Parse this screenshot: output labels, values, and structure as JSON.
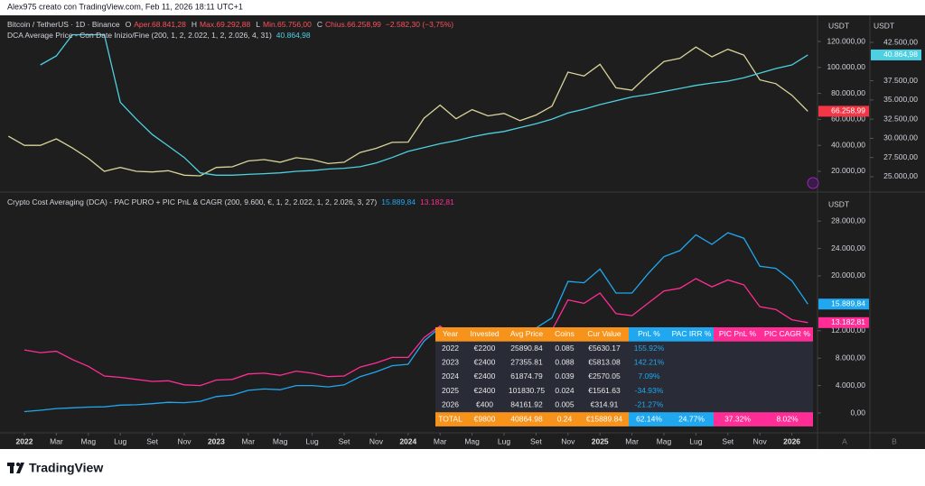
{
  "header": {
    "caption": "Alex975 creato con TradingView.com, Feb 11, 2026 18:11 UTC+1"
  },
  "footer": {
    "brand": "TradingView"
  },
  "ui": {
    "scale_buttons": [
      "A",
      "B"
    ]
  },
  "chart_data": [
    {
      "type": "line",
      "title": "Bitcoin / TetherUS · 1D · Binance",
      "ohlc": [
        {
          "key": "O",
          "value": "Aper.68.841,28"
        },
        {
          "key": "H",
          "value": "Max.69.292,88"
        },
        {
          "key": "L",
          "value": "Min.65.756,00"
        },
        {
          "key": "C",
          "value": "Chius.66.258,99"
        }
      ],
      "change": "−2.582,30 (−3,75%)",
      "y_unit": "USDT",
      "y2_unit": "USDT",
      "x": [
        "2021-12",
        "2022-01",
        "2022-02",
        "2022-03",
        "2022-04",
        "2022-05",
        "2022-06",
        "2022-07",
        "2022-08",
        "2022-09",
        "2022-10",
        "2022-11",
        "2022-12",
        "2023-01",
        "2023-02",
        "2023-03",
        "2023-04",
        "2023-05",
        "2023-06",
        "2023-07",
        "2023-08",
        "2023-09",
        "2023-10",
        "2023-11",
        "2023-12",
        "2024-01",
        "2024-02",
        "2024-03",
        "2024-04",
        "2024-05",
        "2024-06",
        "2024-07",
        "2024-08",
        "2024-09",
        "2024-10",
        "2024-11",
        "2024-12",
        "2025-01",
        "2025-02",
        "2025-03",
        "2025-04",
        "2025-05",
        "2025-06",
        "2025-07",
        "2025-08",
        "2025-09",
        "2025-10",
        "2025-11",
        "2025-12",
        "2026-01",
        "2026-02"
      ],
      "ylim": [
        4722,
        140139
      ],
      "yticks": [
        {
          "value": 20000,
          "label": "20.000,00"
        },
        {
          "value": 40000,
          "label": "40.000,00"
        },
        {
          "value": 60000,
          "label": "60.000,00"
        },
        {
          "value": 80000,
          "label": "80.000,00"
        },
        {
          "value": 100000,
          "label": "100.000,00"
        },
        {
          "value": 120000,
          "label": "120.000,00"
        }
      ],
      "y2lim": [
        23120,
        46025
      ],
      "y2ticks": [
        {
          "value": 25000,
          "label": "25.000,00"
        },
        {
          "value": 27500,
          "label": "27.500,00"
        },
        {
          "value": 30000,
          "label": "30.000,00"
        },
        {
          "value": 32500,
          "label": "32.500,00"
        },
        {
          "value": 35000,
          "label": "35.000,00"
        },
        {
          "value": 37500,
          "label": "37.500,00"
        },
        {
          "value": 42500,
          "label": "42.500,00"
        }
      ],
      "series": [
        {
          "name": "Bitcoin / TetherUS · 1D · Binance",
          "color": "#d8d49a",
          "label_color": "#f23645",
          "last_label": "66.258,99",
          "values": [
            47000,
            40000,
            40000,
            45000,
            38000,
            30000,
            20000,
            23000,
            20000,
            19500,
            20500,
            17000,
            16500,
            23000,
            23500,
            28000,
            29000,
            27000,
            30500,
            29000,
            26000,
            27000,
            34500,
            37700,
            42300,
            42500,
            61000,
            71000,
            60500,
            67500,
            62700,
            64600,
            59000,
            63300,
            70200,
            96400,
            93400,
            102400,
            84300,
            82500,
            94200,
            104600,
            107100,
            115700,
            108200,
            114000,
            109500,
            90400,
            87500,
            78600,
            66258.99
          ]
        },
        {
          "name": "DCA Average Price - Con Date Inizio/Fine (200, 1, 2, 2.022, 1, 2, 2.026, 4, 31)",
          "color": "#4dd0e1",
          "label_color": "#4dd0e1",
          "axis": "y2",
          "last_label": "40.864,98",
          "values": [
            null,
            null,
            39560,
            40740,
            43500,
            43500,
            43500,
            34700,
            32500,
            30500,
            29000,
            27500,
            25500,
            25200,
            25200,
            25300,
            25400,
            25500,
            25700,
            25800,
            26000,
            26100,
            26300,
            26800,
            27500,
            28300,
            28800,
            29300,
            29700,
            30200,
            30600,
            30900,
            31400,
            31900,
            32500,
            33300,
            33800,
            34400,
            34900,
            35400,
            35700,
            36100,
            36500,
            36900,
            37200,
            37450,
            37900,
            38500,
            39100,
            39560,
            40864.98
          ]
        }
      ]
    },
    {
      "type": "line",
      "title": "Crypto Cost Averaging (DCA) - PAC PURO + PIC PnL & CAGR (200, 9.600, €, 1, 2, 2.022, 1, 2, 2.026, 3, 27)",
      "y_unit": "USDT",
      "x": [
        "2021-12",
        "2022-01",
        "2022-02",
        "2022-03",
        "2022-04",
        "2022-05",
        "2022-06",
        "2022-07",
        "2022-08",
        "2022-09",
        "2022-10",
        "2022-11",
        "2022-12",
        "2023-01",
        "2023-02",
        "2023-03",
        "2023-04",
        "2023-05",
        "2023-06",
        "2023-07",
        "2023-08",
        "2023-09",
        "2023-10",
        "2023-11",
        "2023-12",
        "2024-01",
        "2024-02",
        "2024-03",
        "2024-04",
        "2024-05",
        "2024-06",
        "2024-07",
        "2024-08",
        "2024-09",
        "2024-10",
        "2024-11",
        "2024-12",
        "2025-01",
        "2025-02",
        "2025-03",
        "2025-04",
        "2025-05",
        "2025-06",
        "2025-07",
        "2025-08",
        "2025-09",
        "2025-10",
        "2025-11",
        "2025-12",
        "2026-01",
        "2026-02"
      ],
      "xticks": [
        {
          "value": "2022-01",
          "label": "2022"
        },
        {
          "value": "2022-03",
          "label": "Mar"
        },
        {
          "value": "2022-05",
          "label": "Mag"
        },
        {
          "value": "2022-07",
          "label": "Lug"
        },
        {
          "value": "2022-09",
          "label": "Set"
        },
        {
          "value": "2022-11",
          "label": "Nov"
        },
        {
          "value": "2023-01",
          "label": "2023"
        },
        {
          "value": "2023-03",
          "label": "Mar"
        },
        {
          "value": "2023-05",
          "label": "Mag"
        },
        {
          "value": "2023-07",
          "label": "Lug"
        },
        {
          "value": "2023-09",
          "label": "Set"
        },
        {
          "value": "2023-11",
          "label": "Nov"
        },
        {
          "value": "2024-01",
          "label": "2024"
        },
        {
          "value": "2024-03",
          "label": "Mar"
        },
        {
          "value": "2024-05",
          "label": "Mag"
        },
        {
          "value": "2024-07",
          "label": "Lug"
        },
        {
          "value": "2024-09",
          "label": "Set"
        },
        {
          "value": "2024-11",
          "label": "Nov"
        },
        {
          "value": "2025-01",
          "label": "2025"
        },
        {
          "value": "2025-03",
          "label": "Mar"
        },
        {
          "value": "2025-05",
          "label": "Mag"
        },
        {
          "value": "2025-07",
          "label": "Lug"
        },
        {
          "value": "2025-09",
          "label": "Set"
        },
        {
          "value": "2025-11",
          "label": "Nov"
        },
        {
          "value": "2026-01",
          "label": "2026"
        }
      ],
      "ylim": [
        -2630,
        31970
      ],
      "yticks": [
        {
          "value": 0,
          "label": "0,00"
        },
        {
          "value": 4000,
          "label": "4.000,00"
        },
        {
          "value": 8000,
          "label": "8.000,00"
        },
        {
          "value": 12000,
          "label": "12.000,00"
        },
        {
          "value": 20000,
          "label": "20.000,00"
        },
        {
          "value": 24000,
          "label": "24.000,00"
        },
        {
          "value": 28000,
          "label": "28.000,00"
        }
      ],
      "series": [
        {
          "color": "#1fa8f0",
          "label_color": "#1fa8f0",
          "last_label": "15.889,84",
          "values": [
            null,
            200,
            400,
            650,
            750,
            850,
            900,
            1150,
            1200,
            1350,
            1550,
            1500,
            1700,
            2400,
            2600,
            3300,
            3500,
            3400,
            4000,
            4000,
            3800,
            4100,
            5300,
            6000,
            6900,
            7100,
            10500,
            12500,
            10800,
            12300,
            11600,
            12200,
            11400,
            12400,
            13900,
            19200,
            19000,
            21000,
            17500,
            17500,
            20300,
            22800,
            23700,
            26000,
            24600,
            26300,
            25500,
            21400,
            21100,
            19300,
            15889.84
          ]
        },
        {
          "color": "#ff2d95",
          "label_color": "#ff2d95",
          "last_label": "13.182,81",
          "values": [
            null,
            9200,
            8800,
            9000,
            7800,
            6800,
            5400,
            5200,
            4900,
            4600,
            4700,
            4100,
            4000,
            4800,
            4900,
            5700,
            5800,
            5500,
            6100,
            5800,
            5300,
            5400,
            6700,
            7300,
            8100,
            8100,
            11000,
            12700,
            10800,
            11900,
            11000,
            11300,
            10300,
            11000,
            12100,
            16500,
            16000,
            17500,
            14500,
            14200,
            16000,
            17800,
            18200,
            19600,
            18400,
            19400,
            18700,
            15500,
            15100,
            13600,
            13182.81
          ]
        }
      ]
    }
  ],
  "table": {
    "columns": [
      "Year",
      "Invested",
      "Avg Price",
      "Coins",
      "Cur Value",
      "PnL %",
      "PAC IRR %",
      "PIC PnL %",
      "PIC CAGR %"
    ],
    "rows": [
      [
        "2022",
        "€2200",
        "25890.84",
        "0.085",
        "€5630.17",
        "155.92%"
      ],
      [
        "2023",
        "€2400",
        "27355.81",
        "0.088",
        "€5813.08",
        "142.21%"
      ],
      [
        "2024",
        "€2400",
        "61874.79",
        "0.039",
        "€2570.05",
        "7.09%"
      ],
      [
        "2025",
        "€2400",
        "101830.75",
        "0.024",
        "€1561.63",
        "-34.93%"
      ],
      [
        "2026",
        "€400",
        "84161.92",
        "0.005",
        "€314.91",
        "-21.27%"
      ]
    ],
    "total": [
      "TOTAL",
      "€9800",
      "40864.98",
      "0.24",
      "€15889.84",
      "62.14%",
      "24.77%",
      "37.32%",
      "8.02%"
    ]
  }
}
